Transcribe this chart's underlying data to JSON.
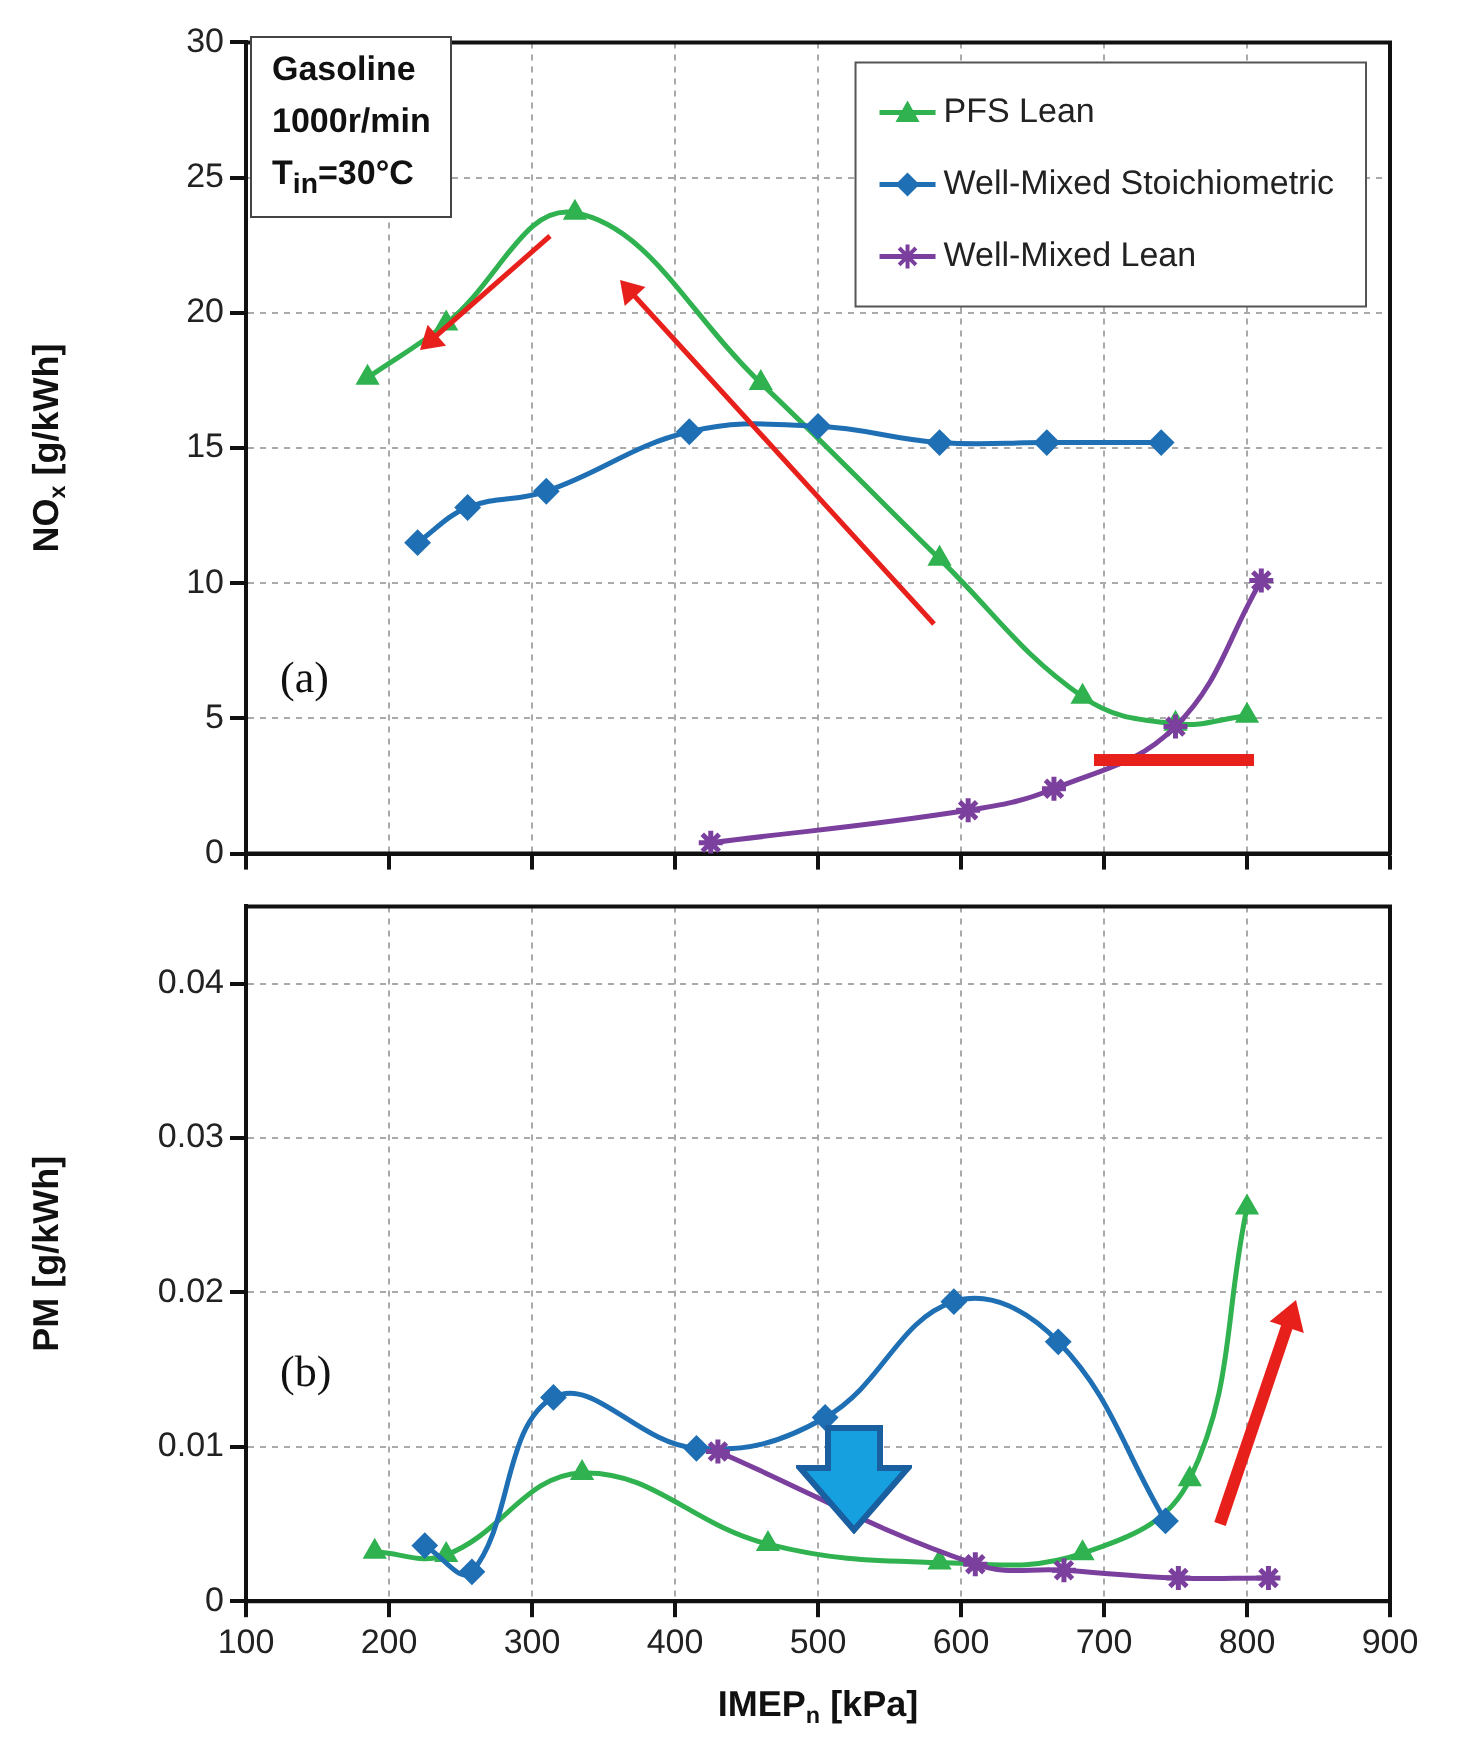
{
  "chart_data": [
    {
      "type": "line",
      "ylabel": "NO$_{x}$ [g/kWh]",
      "xlim": [
        100,
        900
      ],
      "xticks": [
        100,
        200,
        300,
        400,
        500,
        600,
        700,
        800,
        900
      ],
      "ylim": [
        0,
        30
      ],
      "yticks": [
        0,
        5,
        10,
        15,
        20,
        25,
        30
      ],
      "tick_labels": "y",
      "grid": true,
      "legend": "top right",
      "annotations": [
        "Gasoline\n1000r/min\nT$_{in}$=30°C",
        "(a)"
      ],
      "series": [
        {
          "name": "PFS Lean",
          "color": "#2fb24f",
          "marker": "triangle",
          "x": [
            185,
            240,
            330,
            460,
            585,
            685,
            750,
            800
          ],
          "values": [
            17.6,
            19.6,
            23.7,
            17.4,
            10.9,
            5.8,
            4.8,
            5.1
          ]
        },
        {
          "name": "Well-Mixed Stoichiometric",
          "color": "#1f6fb5",
          "marker": "diamond",
          "x": [
            220,
            255,
            310,
            410,
            500,
            585,
            660,
            740
          ],
          "values": [
            11.5,
            12.8,
            13.4,
            15.6,
            15.8,
            15.2,
            15.2,
            15.2
          ]
        },
        {
          "name": "Well-Mixed Lean",
          "color": "#7b3f9e",
          "marker": "cross",
          "x": [
            425,
            605,
            665,
            750,
            810
          ],
          "values": [
            0.4,
            1.6,
            2.4,
            4.7,
            10.1
          ]
        }
      ]
    },
    {
      "type": "line",
      "xlabel": "IMEP$_{n}$ [kPa]",
      "ylabel": "PM [g/kWh]",
      "xlim": [
        100,
        900
      ],
      "xticks": [
        100,
        200,
        300,
        400,
        500,
        600,
        700,
        800,
        900
      ],
      "ylim": [
        0,
        0.045
      ],
      "yticks": [
        0,
        0.01,
        0.02,
        0.03,
        0.04
      ],
      "grid": true,
      "annotations": [
        "(b)"
      ],
      "series": [
        {
          "color": "#2fb24f",
          "marker": "triangle",
          "x": [
            190,
            240,
            335,
            465,
            585,
            685,
            760,
            800
          ],
          "values": [
            0.0032,
            0.003,
            0.0083,
            0.0037,
            0.0025,
            0.0031,
            0.0079,
            0.0255
          ]
        },
        {
          "color": "#1f6fb5",
          "marker": "diamond",
          "x": [
            225,
            258,
            315,
            415,
            505,
            595,
            668,
            743
          ],
          "values": [
            0.0036,
            0.0019,
            0.0132,
            0.0099,
            0.0119,
            0.0194,
            0.0168,
            0.0052
          ]
        },
        {
          "color": "#7b3f9e",
          "marker": "cross",
          "x": [
            430,
            610,
            672,
            752,
            815
          ],
          "values": [
            0.0097,
            0.0024,
            0.002,
            0.0015,
            0.0015
          ]
        }
      ]
    }
  ]
}
